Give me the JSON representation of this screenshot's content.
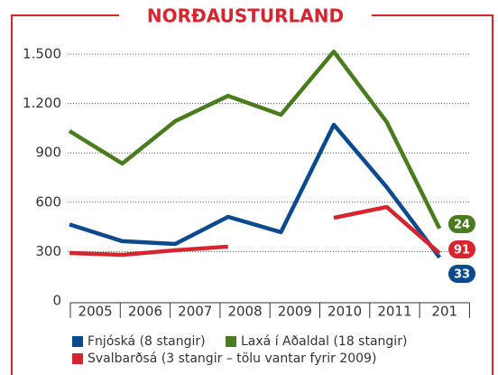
{
  "chart_data": {
    "type": "line",
    "title": "NORÐAUSTURLAND",
    "categories": [
      "2005",
      "2006",
      "2007",
      "2008",
      "2009",
      "2010",
      "2011",
      "201"
    ],
    "series": [
      {
        "name": "Fnjóská (8 stangir)",
        "color": "#0b4a8f",
        "values": [
          465,
          363,
          346,
          511,
          418,
          1071,
          692,
          264
        ],
        "badge": "33"
      },
      {
        "name": "Laxá í Aðaldal (18 stangir)",
        "color": "#4b7b1f",
        "values": [
          1033,
          835,
          1093,
          1247,
          1132,
          1516,
          1088,
          440
        ],
        "badge": "24"
      },
      {
        "name": "Svalbarðsá (3 stangir – tölu vantar fyrir 2009)",
        "color": "#d6252f",
        "values": [
          291,
          280,
          308,
          330,
          null,
          505,
          571,
          290
        ],
        "badge": "91"
      }
    ],
    "ylim": [
      0,
      1500
    ],
    "yticks": [
      0,
      300,
      600,
      900,
      {
        "value": 1200,
        "label": "1.200"
      },
      {
        "value": 1500,
        "label": "1.500"
      }
    ],
    "grid": true
  }
}
